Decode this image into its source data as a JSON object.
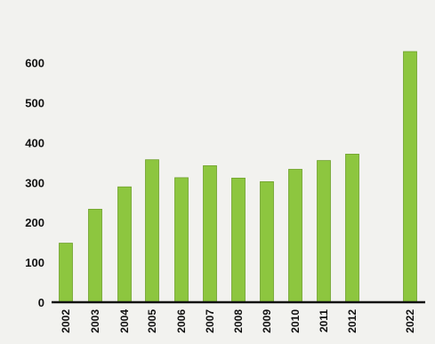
{
  "chart_data": {
    "type": "bar",
    "categories": [
      "2002",
      "2003",
      "2004",
      "2005",
      "2006",
      "2007",
      "2008",
      "2009",
      "2010",
      "2011",
      "2012",
      "2022"
    ],
    "values": [
      148,
      233,
      289,
      357,
      312,
      342,
      311,
      302,
      333,
      355,
      371,
      628
    ],
    "title": "",
    "xlabel": "",
    "ylabel": "",
    "ylim": [
      0,
      650
    ],
    "yticks": [
      0,
      100,
      200,
      300,
      400,
      500,
      600
    ],
    "grid": false,
    "legend": "none",
    "bar_color": "#8dc63f",
    "bar_edge_color": "#6fa02c",
    "axis_color": "#111111"
  }
}
